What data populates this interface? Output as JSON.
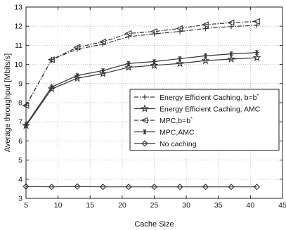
{
  "chart_data": {
    "type": "line",
    "title": "",
    "xlabel": "Cache Size",
    "ylabel": "Average throughput [Mbits/s]",
    "xlim": [
      5,
      45
    ],
    "ylim": [
      3,
      13
    ],
    "xticks": [
      5,
      10,
      15,
      20,
      25,
      30,
      35,
      40,
      45
    ],
    "yticks": [
      3,
      4,
      5,
      6,
      7,
      8,
      9,
      10,
      11,
      12,
      13
    ],
    "grid": true,
    "legend_position": "center-right",
    "x": [
      5,
      9,
      13,
      17,
      21,
      25,
      29,
      33,
      37,
      41
    ],
    "series": [
      {
        "name": "Energy Efficient Caching, b=b",
        "name_sup": "*",
        "color": "#333333",
        "dash": "dashdot",
        "marker": "plus",
        "values": [
          7.85,
          10.25,
          10.8,
          11.05,
          11.45,
          11.6,
          11.72,
          11.88,
          11.98,
          12.05
        ]
      },
      {
        "name": "Energy Efficient Caching, AMC",
        "color": "#333333",
        "dash": "solid",
        "marker": "star",
        "values": [
          6.8,
          8.72,
          9.28,
          9.52,
          9.85,
          9.95,
          10.05,
          10.2,
          10.28,
          10.35
        ]
      },
      {
        "name": "MPC,b=b",
        "name_sup": "*",
        "color": "#333333",
        "dash": "dashdot",
        "marker": "triangle-left",
        "values": [
          7.85,
          10.25,
          10.9,
          11.18,
          11.62,
          11.72,
          11.88,
          12.08,
          12.18,
          12.25
        ]
      },
      {
        "name": "MPC,AMC",
        "color": "#333333",
        "dash": "solid",
        "marker": "asterisk",
        "values": [
          6.85,
          8.82,
          9.42,
          9.68,
          10.05,
          10.15,
          10.3,
          10.45,
          10.55,
          10.62
        ]
      },
      {
        "name": "No caching",
        "color": "#333333",
        "dash": "solid",
        "marker": "diamond",
        "values": [
          3.62,
          3.6,
          3.62,
          3.6,
          3.6,
          3.6,
          3.6,
          3.6,
          3.6,
          3.6
        ]
      }
    ]
  }
}
